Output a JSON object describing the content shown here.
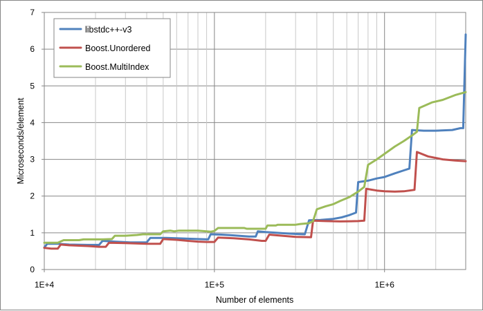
{
  "chart_data": {
    "type": "line",
    "title": "",
    "xlabel": "Number of elements",
    "ylabel": "Microseconds/element",
    "x_scale": "log",
    "xlim": [
      10000,
      3000000
    ],
    "ylim": [
      0,
      7
    ],
    "x_ticks": [
      10000,
      100000,
      1000000
    ],
    "x_tick_labels": [
      "1E+4",
      "1E+5",
      "1E+6"
    ],
    "y_ticks": [
      0,
      1,
      2,
      3,
      4,
      5,
      6,
      7
    ],
    "y_tick_labels": [
      "0",
      "1",
      "2",
      "3",
      "4",
      "5",
      "6",
      "7"
    ],
    "grid": "major and minor",
    "legend_position": "top-left",
    "series": [
      {
        "name": "libstdc++-v3",
        "color": "#4F81BD",
        "points": [
          [
            10000,
            0.6
          ],
          [
            10400,
            0.7
          ],
          [
            12000,
            0.7
          ],
          [
            14000,
            0.68
          ],
          [
            18000,
            0.67
          ],
          [
            21000,
            0.67
          ],
          [
            22000,
            0.78
          ],
          [
            26000,
            0.76
          ],
          [
            32000,
            0.74
          ],
          [
            40000,
            0.74
          ],
          [
            42000,
            0.86
          ],
          [
            48000,
            0.86
          ],
          [
            52000,
            0.86
          ],
          [
            60000,
            0.85
          ],
          [
            70000,
            0.84
          ],
          [
            80000,
            0.83
          ],
          [
            92000,
            0.82
          ],
          [
            95000,
            0.96
          ],
          [
            110000,
            0.95
          ],
          [
            130000,
            0.93
          ],
          [
            160000,
            0.9
          ],
          [
            175000,
            0.9
          ],
          [
            180000,
            1.04
          ],
          [
            200000,
            1.02
          ],
          [
            250000,
            0.99
          ],
          [
            300000,
            0.97
          ],
          [
            340000,
            0.96
          ],
          [
            360000,
            1.34
          ],
          [
            420000,
            1.35
          ],
          [
            500000,
            1.38
          ],
          [
            560000,
            1.42
          ],
          [
            620000,
            1.48
          ],
          [
            680000,
            1.55
          ],
          [
            700000,
            2.38
          ],
          [
            800000,
            2.42
          ],
          [
            900000,
            2.48
          ],
          [
            1000000,
            2.52
          ],
          [
            1150000,
            2.62
          ],
          [
            1300000,
            2.7
          ],
          [
            1400000,
            2.75
          ],
          [
            1450000,
            3.8
          ],
          [
            1700000,
            3.78
          ],
          [
            2000000,
            3.78
          ],
          [
            2500000,
            3.8
          ],
          [
            2800000,
            3.85
          ],
          [
            2900000,
            3.85
          ],
          [
            3000000,
            6.4
          ]
        ]
      },
      {
        "name": "Boost.Unordered",
        "color": "#C0504D",
        "points": [
          [
            10000,
            0.59
          ],
          [
            11000,
            0.57
          ],
          [
            12000,
            0.57
          ],
          [
            12500,
            0.68
          ],
          [
            14000,
            0.66
          ],
          [
            18000,
            0.64
          ],
          [
            21000,
            0.62
          ],
          [
            23000,
            0.62
          ],
          [
            24000,
            0.73
          ],
          [
            30000,
            0.72
          ],
          [
            40000,
            0.7
          ],
          [
            48000,
            0.7
          ],
          [
            50000,
            0.83
          ],
          [
            60000,
            0.81
          ],
          [
            70000,
            0.78
          ],
          [
            80000,
            0.76
          ],
          [
            90000,
            0.75
          ],
          [
            100000,
            0.75
          ],
          [
            105000,
            0.87
          ],
          [
            130000,
            0.85
          ],
          [
            160000,
            0.82
          ],
          [
            190000,
            0.78
          ],
          [
            200000,
            0.78
          ],
          [
            210000,
            0.95
          ],
          [
            250000,
            0.92
          ],
          [
            300000,
            0.89
          ],
          [
            370000,
            0.88
          ],
          [
            380000,
            1.33
          ],
          [
            450000,
            1.32
          ],
          [
            550000,
            1.31
          ],
          [
            700000,
            1.32
          ],
          [
            760000,
            1.33
          ],
          [
            780000,
            2.2
          ],
          [
            900000,
            2.15
          ],
          [
            1000000,
            2.13
          ],
          [
            1150000,
            2.12
          ],
          [
            1300000,
            2.13
          ],
          [
            1500000,
            2.17
          ],
          [
            1550000,
            3.2
          ],
          [
            1800000,
            3.08
          ],
          [
            2200000,
            3.0
          ],
          [
            2600000,
            2.97
          ],
          [
            3000000,
            2.95
          ]
        ]
      },
      {
        "name": "Boost.MultiIndex",
        "color": "#9BBB59",
        "points": [
          [
            10000,
            0.73
          ],
          [
            12000,
            0.73
          ],
          [
            13000,
            0.8
          ],
          [
            16000,
            0.8
          ],
          [
            17000,
            0.82
          ],
          [
            22000,
            0.82
          ],
          [
            25000,
            0.83
          ],
          [
            26000,
            0.92
          ],
          [
            30000,
            0.92
          ],
          [
            35000,
            0.94
          ],
          [
            38000,
            0.96
          ],
          [
            48000,
            0.96
          ],
          [
            50000,
            1.04
          ],
          [
            55000,
            1.06
          ],
          [
            58000,
            1.04
          ],
          [
            62000,
            1.06
          ],
          [
            80000,
            1.06
          ],
          [
            85000,
            1.05
          ],
          [
            95000,
            1.03
          ],
          [
            100000,
            1.05
          ],
          [
            105000,
            1.13
          ],
          [
            130000,
            1.13
          ],
          [
            150000,
            1.13
          ],
          [
            155000,
            1.11
          ],
          [
            190000,
            1.11
          ],
          [
            200000,
            1.11
          ],
          [
            205000,
            1.2
          ],
          [
            230000,
            1.2
          ],
          [
            235000,
            1.22
          ],
          [
            300000,
            1.22
          ],
          [
            320000,
            1.24
          ],
          [
            360000,
            1.26
          ],
          [
            380000,
            1.32
          ],
          [
            400000,
            1.64
          ],
          [
            450000,
            1.72
          ],
          [
            500000,
            1.78
          ],
          [
            550000,
            1.87
          ],
          [
            620000,
            1.97
          ],
          [
            700000,
            2.12
          ],
          [
            760000,
            2.25
          ],
          [
            800000,
            2.85
          ],
          [
            900000,
            3.0
          ],
          [
            1000000,
            3.15
          ],
          [
            1150000,
            3.35
          ],
          [
            1300000,
            3.5
          ],
          [
            1450000,
            3.65
          ],
          [
            1550000,
            3.75
          ],
          [
            1600000,
            4.4
          ],
          [
            1900000,
            4.55
          ],
          [
            2200000,
            4.62
          ],
          [
            2600000,
            4.75
          ],
          [
            3000000,
            4.83
          ]
        ]
      }
    ]
  }
}
